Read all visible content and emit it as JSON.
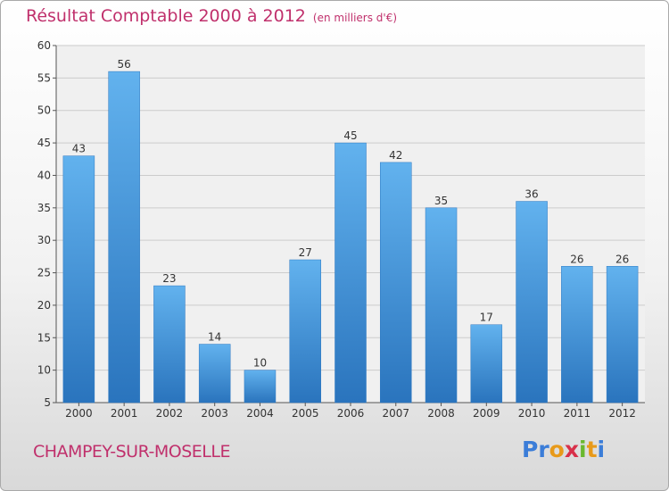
{
  "header": {
    "title": "Résultat Comptable 2000 à 2012",
    "subtitle": "(en milliers d'€)"
  },
  "footer": {
    "location": "CHAMPEY-SUR-MOSELLE",
    "logo": "Proxiti"
  },
  "colors": {
    "bar": "#3d8fd6",
    "bar_light": "#62b2ee",
    "bar_dark": "#2a74bd",
    "title": "#c0306c"
  },
  "chart_data": {
    "type": "bar",
    "categories": [
      "2000",
      "2001",
      "2002",
      "2003",
      "2004",
      "2005",
      "2006",
      "2007",
      "2008",
      "2009",
      "2010",
      "2011",
      "2012"
    ],
    "values": [
      43,
      56,
      23,
      14,
      10,
      27,
      45,
      42,
      35,
      17,
      36,
      26,
      26
    ],
    "ylim": [
      5,
      60
    ],
    "yticks": [
      5,
      10,
      15,
      20,
      25,
      30,
      35,
      40,
      45,
      50,
      55,
      60
    ],
    "grid": true,
    "data_labels": true
  }
}
